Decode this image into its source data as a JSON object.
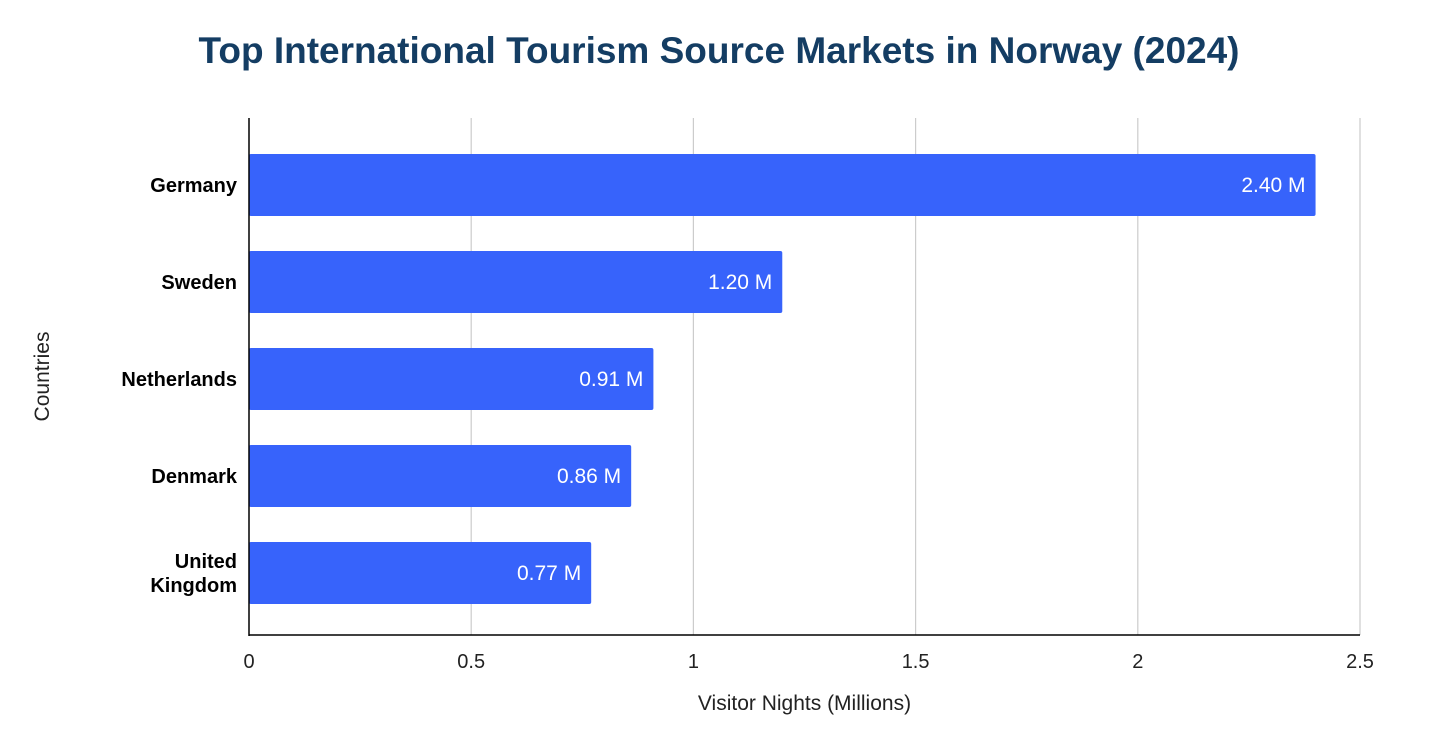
{
  "chart_data": {
    "type": "bar",
    "orientation": "horizontal",
    "title": "Top International Tourism Source Markets in Norway (2024)",
    "xlabel": "Visitor Nights (Millions)",
    "ylabel": "Countries",
    "categories": [
      [
        "Germany"
      ],
      [
        "Sweden"
      ],
      [
        "Netherlands"
      ],
      [
        "Denmark"
      ],
      [
        "United",
        "Kingdom"
      ]
    ],
    "values": [
      2.4,
      1.2,
      0.91,
      0.86,
      0.77
    ],
    "data_labels": [
      "2.40 M",
      "1.20 M",
      "0.91 M",
      "0.86 M",
      "0.77 M"
    ],
    "xlim": [
      0,
      2.5
    ],
    "xticks": [
      0,
      0.5,
      1,
      1.5,
      2,
      2.5
    ],
    "xtick_labels": [
      "0",
      "0.5",
      "1",
      "1.5",
      "2",
      "2.5"
    ],
    "grid": true,
    "bar_color": "#3763fb",
    "title_color": "#143d63",
    "gridline_color": "#cccccc"
  }
}
